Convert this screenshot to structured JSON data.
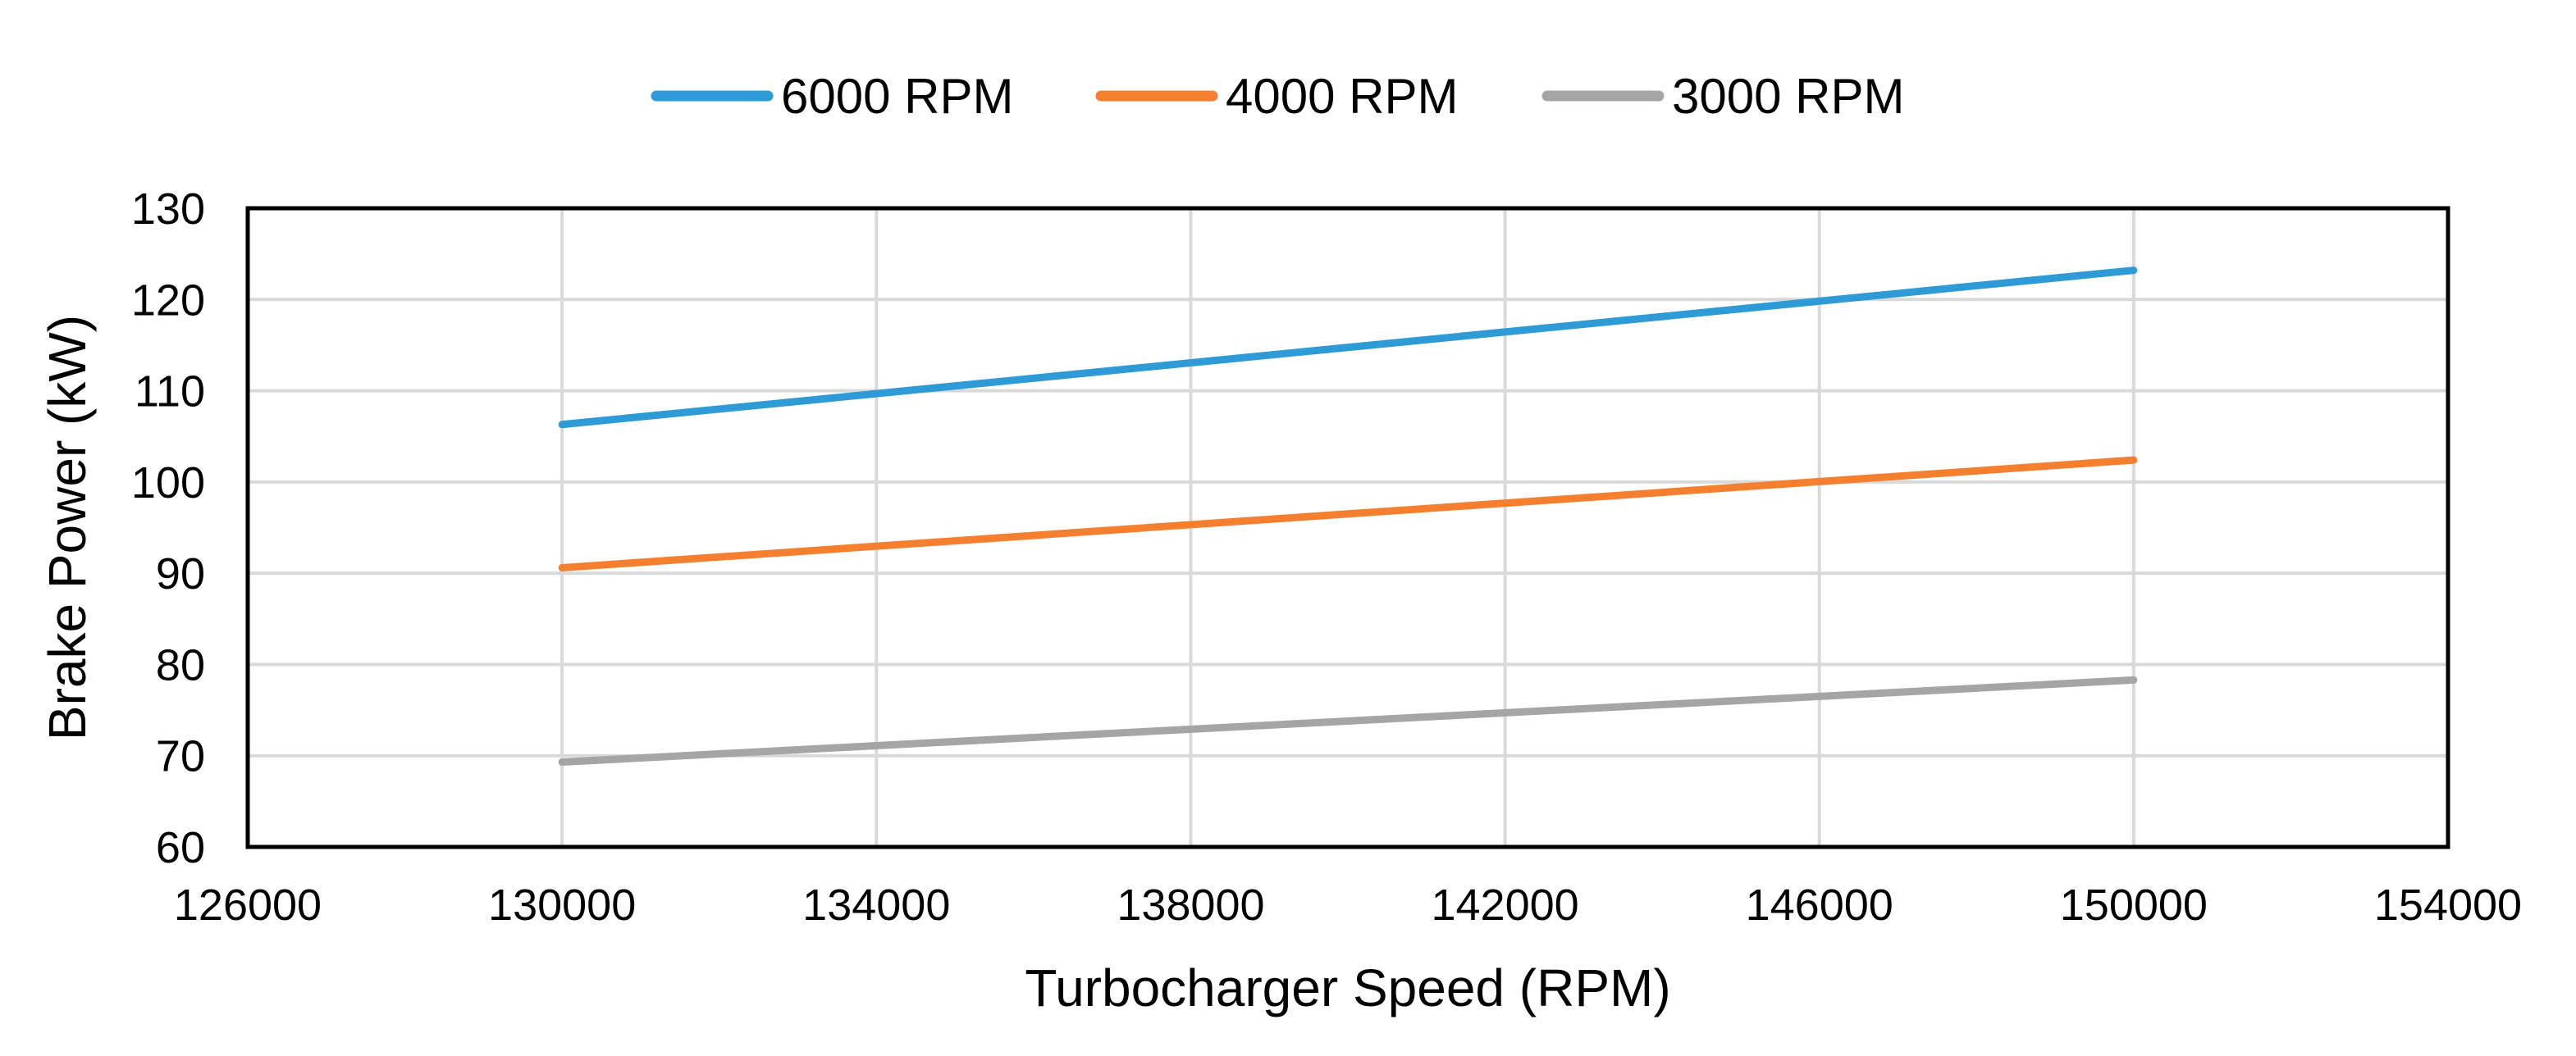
{
  "chart_data": {
    "type": "line",
    "title": "",
    "xlabel": "Turbocharger Speed (RPM)",
    "ylabel": "Brake Power (kW)",
    "xlim": [
      126000,
      154000
    ],
    "ylim": [
      60,
      130
    ],
    "xticks": [
      126000,
      130000,
      134000,
      138000,
      142000,
      146000,
      150000,
      154000
    ],
    "yticks": [
      60,
      70,
      80,
      90,
      100,
      110,
      120,
      130
    ],
    "grid": true,
    "legend_position": "top-center",
    "series": [
      {
        "name": "6000 RPM",
        "color": "#2e9bd6",
        "x": [
          130000,
          150000
        ],
        "y": [
          106.3,
          123.2
        ]
      },
      {
        "name": "4000 RPM",
        "color": "#f47f2e",
        "x": [
          130000,
          150000
        ],
        "y": [
          90.6,
          102.4
        ]
      },
      {
        "name": "3000 RPM",
        "color": "#a5a5a5",
        "x": [
          130000,
          150000
        ],
        "y": [
          69.3,
          78.3
        ]
      }
    ]
  }
}
